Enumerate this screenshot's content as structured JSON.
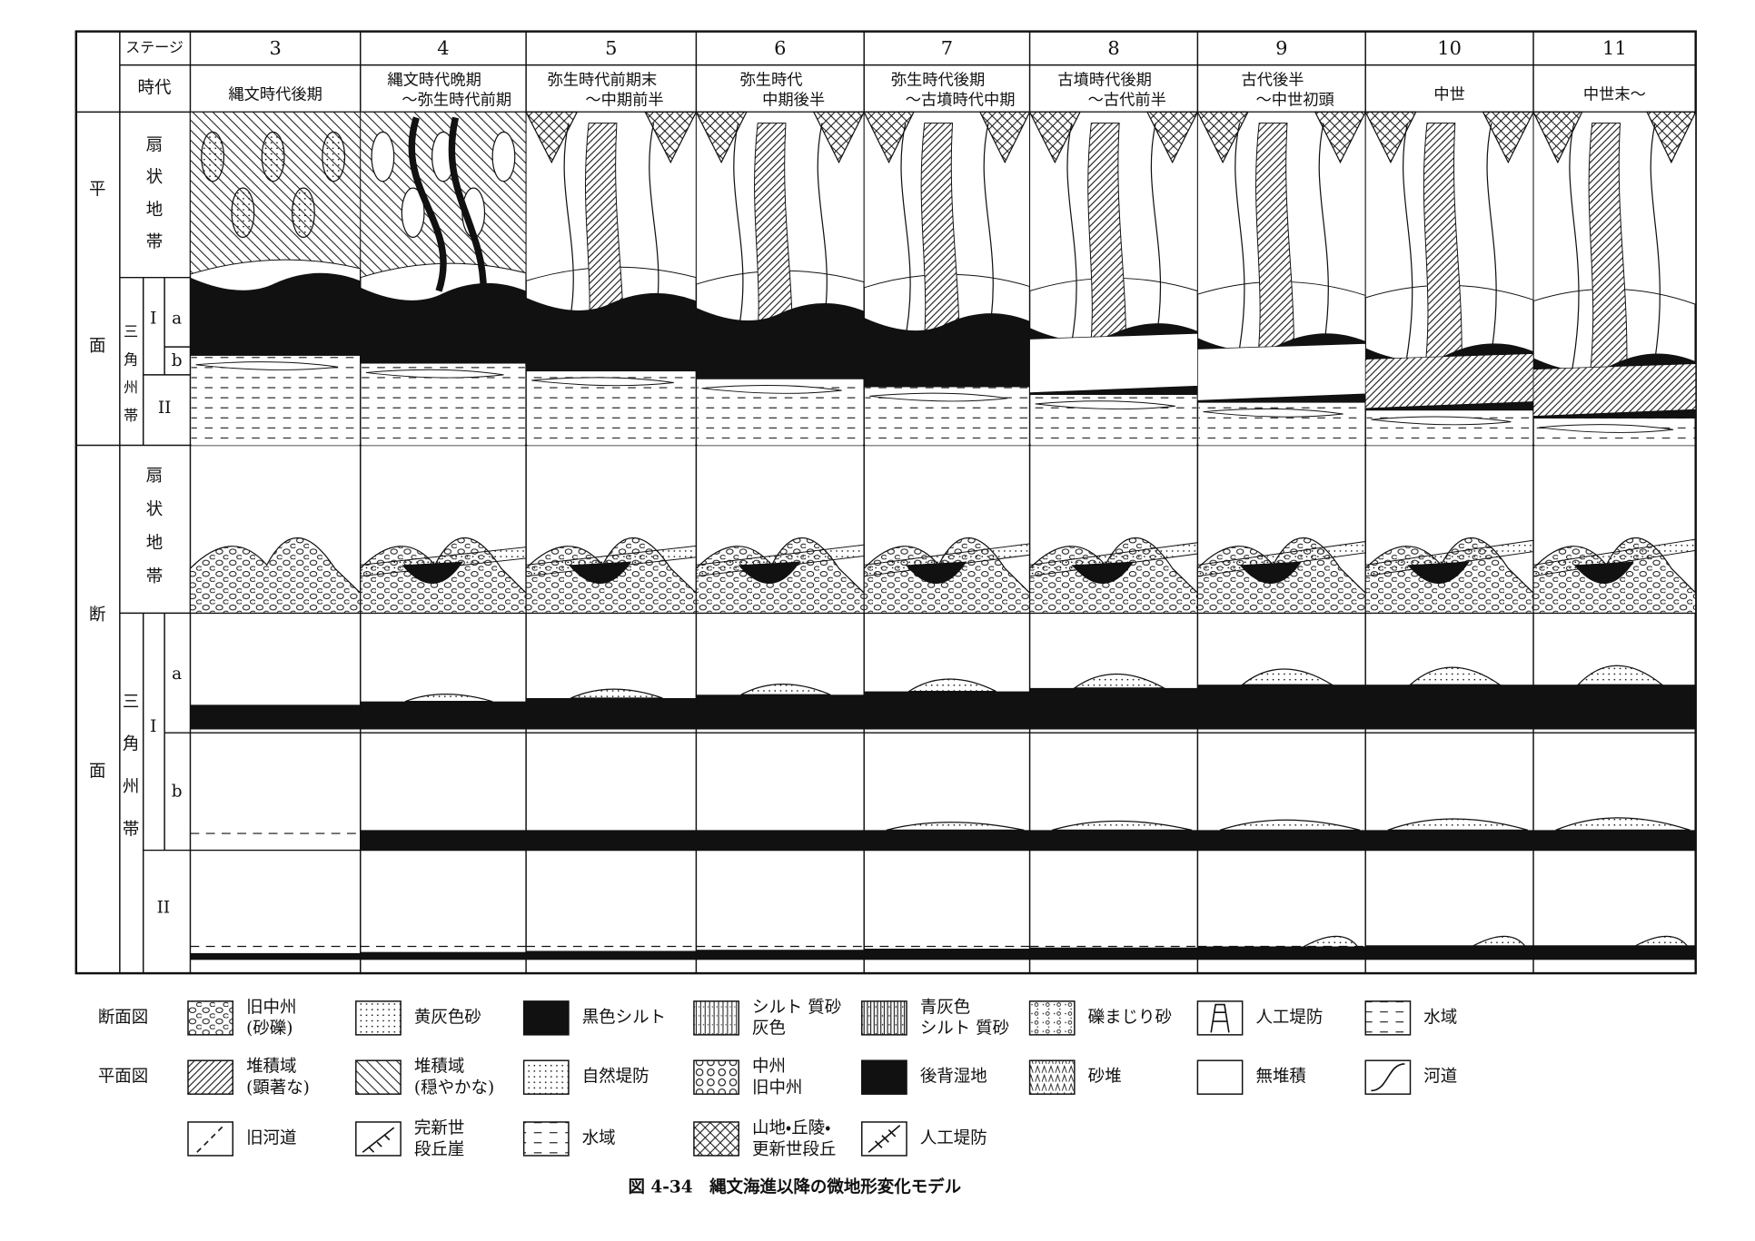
{
  "header": {
    "stage_label": "ステージ",
    "era_label": "時代"
  },
  "stages": [
    {
      "stage": "3",
      "era": [
        "縄文時代後期"
      ]
    },
    {
      "stage": "4",
      "era": [
        "縄文時代晩期",
        "～弥生時代前期"
      ]
    },
    {
      "stage": "5",
      "era": [
        "弥生時代前期末",
        "～中期前半"
      ]
    },
    {
      "stage": "6",
      "era": [
        "弥生時代",
        "中期後半"
      ]
    },
    {
      "stage": "7",
      "era": [
        "弥生時代後期",
        "～古墳時代中期"
      ]
    },
    {
      "stage": "8",
      "era": [
        "古墳時代後期",
        "～古代前半"
      ]
    },
    {
      "stage": "9",
      "era": [
        "古代後半",
        "～中世初頭"
      ]
    },
    {
      "stage": "10",
      "era": [
        "中世"
      ]
    },
    {
      "stage": "11",
      "era": [
        "中世末～"
      ]
    }
  ],
  "rows": {
    "plan": [
      "平",
      "面"
    ],
    "section": [
      "断",
      "面"
    ],
    "fan": [
      "扇",
      "状",
      "地",
      "帯"
    ],
    "delta": [
      "三",
      "角",
      "州",
      "帯"
    ],
    "zone_1": "I",
    "zone_2": "II",
    "sub_a": "a",
    "sub_b": "b"
  },
  "legend": {
    "section_title": "断面図",
    "plan_title": "平面図",
    "section_items": [
      [
        "旧中州",
        "(砂礫)"
      ],
      [
        "黄灰色砂"
      ],
      [
        "黒色シルト"
      ],
      [
        "シルト 質砂",
        "灰色"
      ],
      [
        "青灰色",
        "シルト 質砂"
      ],
      [
        "礫まじり砂"
      ],
      [
        "人工堤防"
      ],
      [
        "水域"
      ]
    ],
    "plan_items": [
      [
        "堆積域",
        "(顕著な)"
      ],
      [
        "堆積域",
        "(穏やかな)"
      ],
      [
        "自然堤防"
      ],
      [
        "中州",
        "旧中州"
      ],
      [
        "後背湿地"
      ],
      [
        "砂堆"
      ],
      [
        "無堆積"
      ],
      [
        "河道"
      ],
      [
        "旧河道"
      ],
      [
        "完新世",
        "段丘崖"
      ],
      [
        "水域"
      ],
      [
        "山地・丘陵・",
        "更新世段丘"
      ],
      [
        "人工堤防"
      ]
    ]
  },
  "caption": "図 4-34　縄文海進以降の微地形変化モデル"
}
